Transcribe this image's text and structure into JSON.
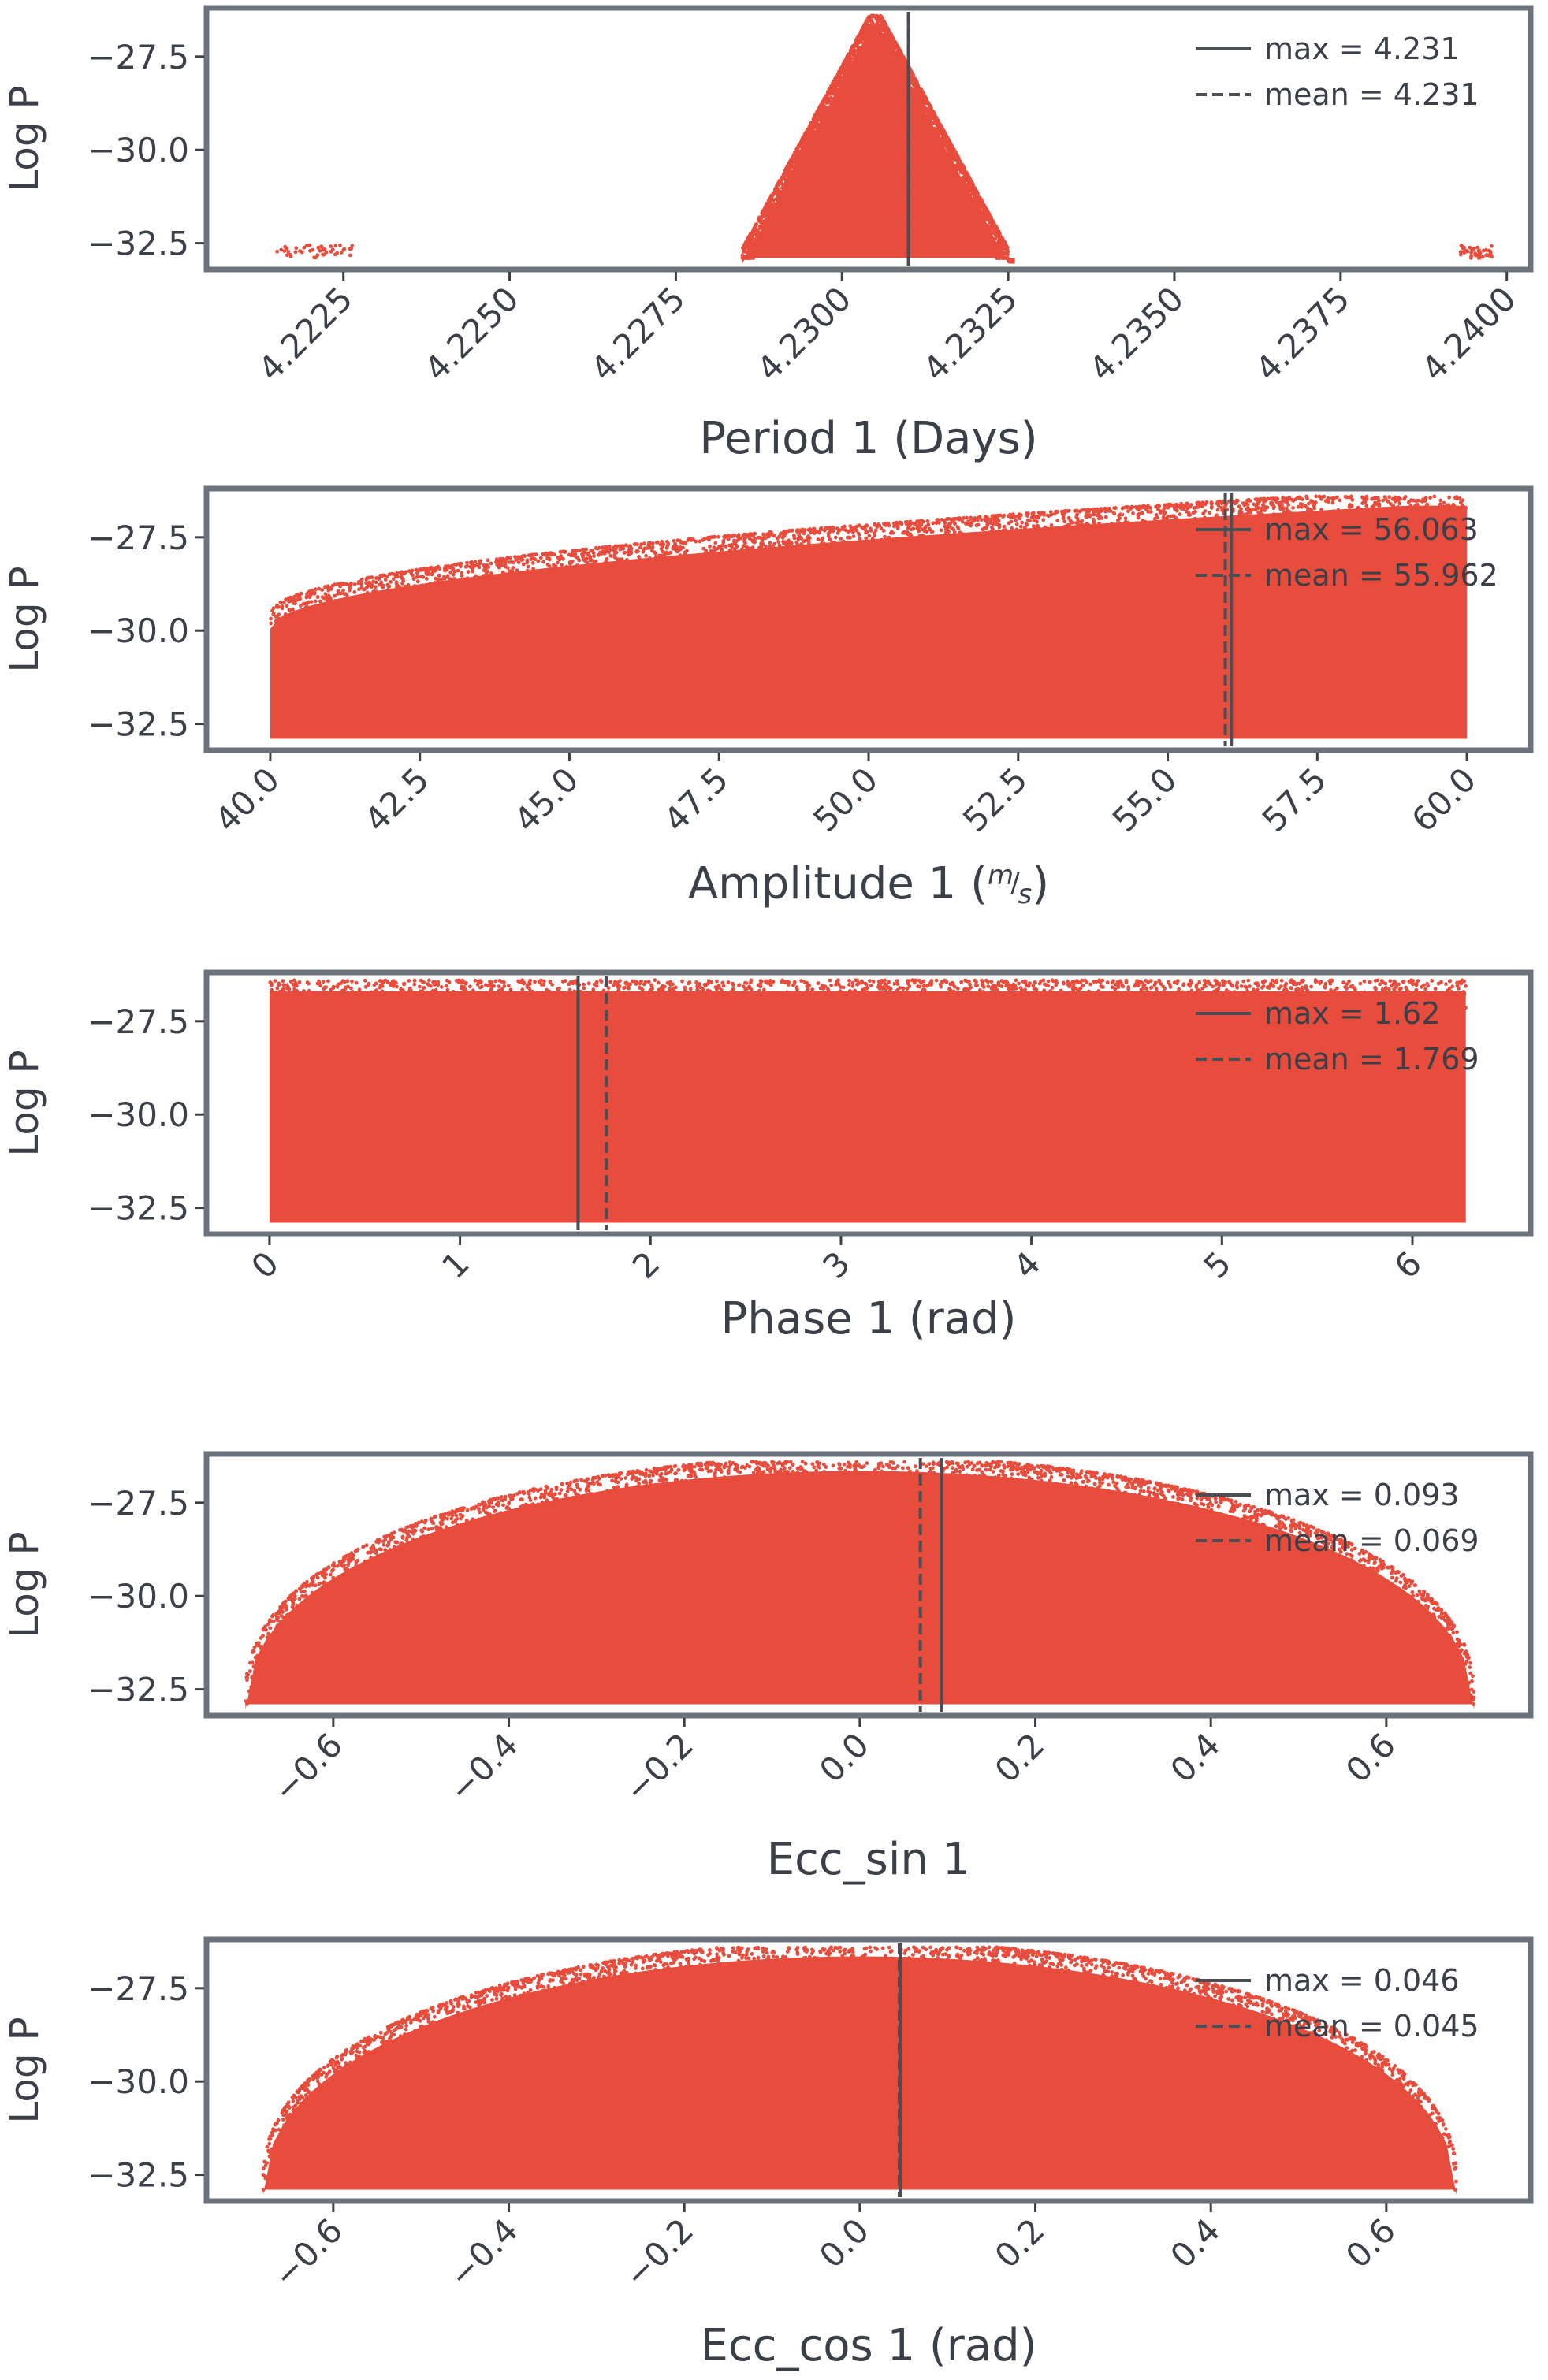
{
  "colors": {
    "points": "#e74c3c",
    "frame": "#6b727b",
    "text": "#3b4048",
    "marker_line": "#4a4e55",
    "legend_text": "#3b4048"
  },
  "chart_data": [
    {
      "type": "scatter",
      "ylabel": "Log P",
      "xlabel": "Period 1 (Days)",
      "xlim": [
        4.2205,
        4.2403
      ],
      "ylim": [
        -33.1,
        -26.3
      ],
      "xticks": [
        4.2225,
        4.225,
        4.2275,
        4.23,
        4.2325,
        4.235,
        4.2375,
        4.24
      ],
      "xtick_labels": [
        "4.2225",
        "4.2250",
        "4.2275",
        "4.2300",
        "4.2325",
        "4.2350",
        "4.2375",
        "4.2400"
      ],
      "yticks": [
        -27.5,
        -30.0,
        -32.5
      ],
      "ytick_labels": [
        "−27.5",
        "−30.0",
        "−32.5"
      ],
      "xtick_rotation": 45,
      "shape": "peak",
      "peak_center": 4.2305,
      "peak_halfwidth": 0.002,
      "cluster_range": [
        4.2285,
        4.2326
      ],
      "outlier_ranges": [
        [
          4.2215,
          4.2227
        ],
        [
          4.2393,
          4.2398
        ]
      ],
      "point_y_range": [
        -32.9,
        -26.5
      ],
      "max": 4.231,
      "mean": 4.231,
      "legend": [
        "max = 4.231",
        "mean = 4.231"
      ]
    },
    {
      "type": "scatter",
      "ylabel": "Log P",
      "xlabel": "Amplitude 1 (m/s)",
      "xlim": [
        39.0,
        61.0
      ],
      "ylim": [
        -33.1,
        -26.3
      ],
      "xticks": [
        40.0,
        42.5,
        45.0,
        47.5,
        50.0,
        52.5,
        55.0,
        57.5,
        60.0
      ],
      "xtick_labels": [
        "40.0",
        "42.5",
        "45.0",
        "47.5",
        "50.0",
        "52.5",
        "55.0",
        "57.5",
        "60.0"
      ],
      "yticks": [
        -27.5,
        -30.0,
        -32.5
      ],
      "ytick_labels": [
        "−27.5",
        "−30.0",
        "−32.5"
      ],
      "xtick_rotation": 45,
      "shape": "ramp",
      "cluster_range": [
        40.0,
        60.0
      ],
      "top_at_start": -29.8,
      "top_at_end": -26.5,
      "point_y_range": [
        -32.9,
        -26.5
      ],
      "max": 56.063,
      "mean": 55.962,
      "legend": [
        "max = 56.063",
        "mean = 55.962"
      ]
    },
    {
      "type": "scatter",
      "ylabel": "Log P",
      "xlabel": "Phase 1 (rad)",
      "xlim": [
        -0.31,
        6.6
      ],
      "ylim": [
        -33.1,
        -26.3
      ],
      "xticks": [
        0,
        1,
        2,
        3,
        4,
        5,
        6
      ],
      "xtick_labels": [
        "0",
        "1",
        "2",
        "3",
        "4",
        "5",
        "6"
      ],
      "yticks": [
        -27.5,
        -30.0,
        -32.5
      ],
      "ytick_labels": [
        "−27.5",
        "−30.0",
        "−32.5"
      ],
      "xtick_rotation": 45,
      "shape": "flat",
      "cluster_range": [
        0.0,
        6.28
      ],
      "point_y_range": [
        -32.9,
        -26.5
      ],
      "max": 1.62,
      "mean": 1.769,
      "legend": [
        "max = 1.62",
        "mean = 1.769"
      ]
    },
    {
      "type": "scatter",
      "ylabel": "Log P",
      "xlabel": "Ecc_sin 1",
      "xlim": [
        -0.74,
        0.76
      ],
      "ylim": [
        -33.1,
        -26.3
      ],
      "xticks": [
        -0.6,
        -0.4,
        -0.2,
        0.0,
        0.2,
        0.4,
        0.6
      ],
      "xtick_labels": [
        "−0.6",
        "−0.4",
        "−0.2",
        "0.0",
        "0.2",
        "0.4",
        "0.6"
      ],
      "yticks": [
        -27.5,
        -30.0,
        -32.5
      ],
      "ytick_labels": [
        "−27.5",
        "−30.0",
        "−32.5"
      ],
      "xtick_rotation": 45,
      "shape": "dome",
      "dome_center": 0.0,
      "dome_halfwidth": 0.7,
      "point_y_range": [
        -32.9,
        -26.5
      ],
      "max": 0.093,
      "mean": 0.069,
      "legend": [
        "max = 0.093",
        "mean = 0.069"
      ]
    },
    {
      "type": "scatter",
      "ylabel": "Log P",
      "xlabel": "Ecc_cos 1 (rad)",
      "xlim": [
        -0.74,
        0.76
      ],
      "ylim": [
        -33.1,
        -26.3
      ],
      "xticks": [
        -0.6,
        -0.4,
        -0.2,
        0.0,
        0.2,
        0.4,
        0.6
      ],
      "xtick_labels": [
        "−0.6",
        "−0.4",
        "−0.2",
        "0.0",
        "0.2",
        "0.4",
        "0.6"
      ],
      "yticks": [
        -27.5,
        -30.0,
        -32.5
      ],
      "ytick_labels": [
        "−27.5",
        "−30.0",
        "−32.5"
      ],
      "xtick_rotation": 45,
      "shape": "dome",
      "dome_center": 0.0,
      "dome_halfwidth": 0.68,
      "point_y_range": [
        -32.9,
        -26.5
      ],
      "max": 0.046,
      "mean": 0.045,
      "legend": [
        "max = 0.046",
        "mean = 0.045"
      ]
    }
  ]
}
